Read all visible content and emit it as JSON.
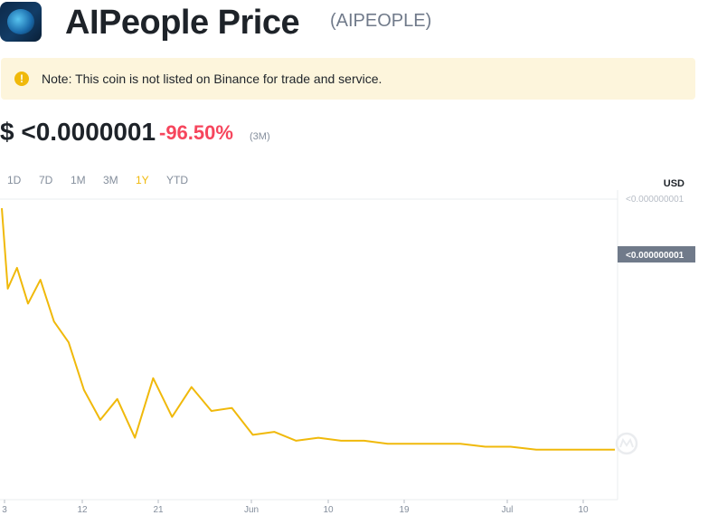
{
  "header": {
    "logo_icon": "aipeople-logo-icon",
    "title": "AIPeople Price",
    "ticker": "(AIPEOPLE)"
  },
  "note": {
    "icon": "alert-circle-icon",
    "icon_glyph": "!",
    "text": "Note: This coin is not listed on Binance for trade and service."
  },
  "price": {
    "value": "$ <0.0000001",
    "change": "-96.50%",
    "period": "(3M)",
    "change_color": "#f6465d"
  },
  "ranges": {
    "items": [
      "1D",
      "7D",
      "1M",
      "3M",
      "1Y",
      "YTD"
    ],
    "active": "1Y",
    "active_color": "#f0b90b"
  },
  "chart": {
    "currency": "USD",
    "top_tick": "<0.000000001",
    "current_badge": "<0.000000001",
    "line_color": "#f0b90b",
    "watermark_icon": "coinmarketcap-watermark-icon"
  },
  "chart_data": {
    "type": "line",
    "title": "",
    "xlabel": "",
    "ylabel": "",
    "x_ticks": [
      "3",
      "12",
      "21",
      "Jun",
      "10",
      "19",
      "Jul",
      "10"
    ],
    "y_ticks": [
      "<0.000000001"
    ],
    "series": [
      {
        "values": [
          100,
          73,
          80,
          68,
          76,
          62,
          55,
          39,
          29,
          36,
          23,
          43,
          30,
          40,
          32,
          33,
          24,
          25,
          22,
          23,
          22,
          22,
          21,
          21,
          21,
          21,
          20,
          20,
          19,
          19,
          19,
          19
        ]
      }
    ],
    "grid": false,
    "legend": "none"
  }
}
